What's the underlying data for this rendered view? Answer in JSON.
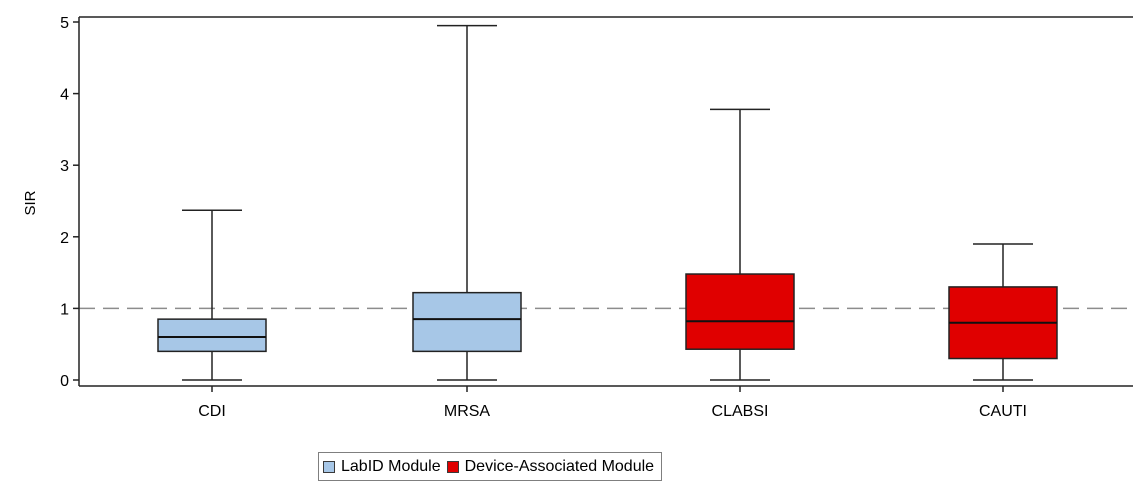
{
  "chart_data": {
    "type": "boxplot",
    "ylabel": "SIR",
    "ylim": [
      0,
      5
    ],
    "yticks": [
      0,
      1,
      2,
      3,
      4,
      5
    ],
    "reference_line": 1,
    "legend_position": "bottom",
    "categories": [
      "CDI",
      "MRSA",
      "CLABSI",
      "CAUTI"
    ],
    "series": [
      {
        "name": "LabID Module",
        "color": "#a7c7e7",
        "boxes": [
          {
            "category": "CDI",
            "min": 0,
            "q1": 0.4,
            "median": 0.6,
            "q3": 0.85,
            "max": 2.37
          },
          {
            "category": "MRSA",
            "min": 0,
            "q1": 0.4,
            "median": 0.85,
            "q3": 1.22,
            "max": 4.95
          }
        ]
      },
      {
        "name": "Device-Associated Module",
        "color": "#e00000",
        "boxes": [
          {
            "category": "CLABSI",
            "min": 0,
            "q1": 0.43,
            "median": 0.82,
            "q3": 1.48,
            "max": 3.78
          },
          {
            "category": "CAUTI",
            "min": 0,
            "q1": 0.3,
            "median": 0.8,
            "q3": 1.3,
            "max": 1.9
          }
        ]
      }
    ]
  }
}
